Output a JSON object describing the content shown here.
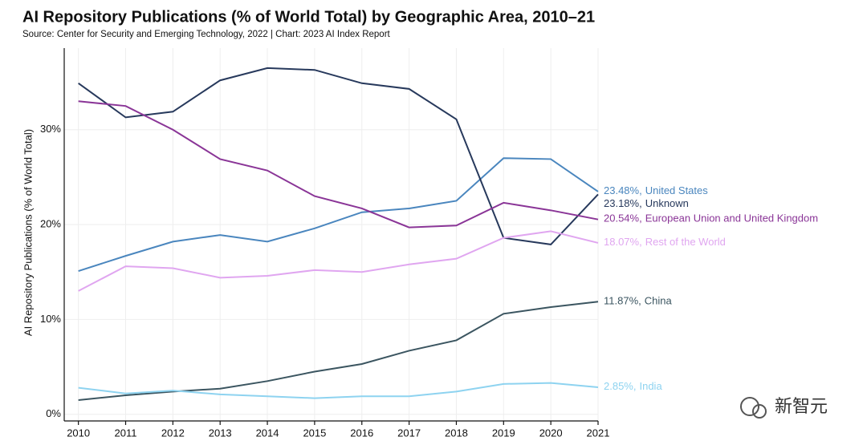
{
  "chart_data": {
    "type": "line",
    "title": "AI Repository Publications (% of World Total) by Geographic Area, 2010–21",
    "subtitle": "Source: Center for Security and Emerging Technology, 2022 | Chart: 2023 AI Index Report",
    "y_label": "AI Repository Publications (% of World Total)",
    "x": [
      2010,
      2011,
      2012,
      2013,
      2014,
      2015,
      2016,
      2017,
      2018,
      2019,
      2020,
      2021
    ],
    "xlim": [
      2009.7,
      2021
    ],
    "xticks": [
      2010,
      2011,
      2012,
      2013,
      2014,
      2015,
      2016,
      2017,
      2018,
      2019,
      2020,
      2021
    ],
    "ylim": [
      -0.7,
      38.6
    ],
    "yticks": [
      {
        "value": 0,
        "label": "0%"
      },
      {
        "value": 10,
        "label": "10%"
      },
      {
        "value": 20,
        "label": "20%"
      },
      {
        "value": 30,
        "label": "30%"
      }
    ],
    "grid": true,
    "series": [
      {
        "name": "United States",
        "color": "#4a86be",
        "values": [
          15.1,
          16.7,
          18.2,
          18.9,
          18.2,
          19.6,
          21.3,
          21.7,
          22.5,
          27.0,
          26.9,
          23.48
        ],
        "value_labels": [
          null,
          null,
          null,
          null,
          null,
          null,
          null,
          null,
          null,
          null,
          null,
          "23.48%,"
        ]
      },
      {
        "name": "Unknown",
        "color": "#27395c",
        "values": [
          34.9,
          31.3,
          31.9,
          35.2,
          36.5,
          36.3,
          34.9,
          34.3,
          31.1,
          18.6,
          17.9,
          23.18
        ],
        "value_labels": [
          null,
          null,
          null,
          null,
          null,
          null,
          null,
          null,
          null,
          null,
          null,
          "23.18%,"
        ]
      },
      {
        "name": "European Union and United Kingdom",
        "color": "#8a3597",
        "values": [
          33.0,
          32.5,
          30.0,
          26.9,
          25.7,
          23.0,
          21.7,
          19.7,
          19.9,
          22.3,
          21.5,
          20.54
        ],
        "value_labels": [
          null,
          null,
          null,
          null,
          null,
          null,
          null,
          null,
          null,
          null,
          null,
          "20.54%,"
        ]
      },
      {
        "name": "Rest of the World",
        "color": "#e0a6f0",
        "values": [
          13.0,
          15.6,
          15.4,
          14.4,
          14.6,
          15.2,
          15.0,
          15.8,
          16.4,
          18.6,
          19.3,
          18.07
        ],
        "value_labels": [
          null,
          null,
          null,
          null,
          null,
          null,
          null,
          null,
          null,
          null,
          null,
          "18.07%,"
        ]
      },
      {
        "name": "China",
        "color": "#3b5560",
        "values": [
          1.5,
          2.0,
          2.4,
          2.7,
          3.5,
          4.5,
          5.3,
          6.7,
          7.8,
          10.6,
          11.3,
          11.87
        ],
        "value_labels": [
          null,
          null,
          null,
          null,
          null,
          null,
          null,
          null,
          null,
          null,
          null,
          "11.87%,"
        ]
      },
      {
        "name": "India",
        "color": "#8ed3f0",
        "values": [
          2.8,
          2.2,
          2.5,
          2.1,
          1.9,
          1.7,
          1.9,
          1.9,
          2.4,
          3.2,
          3.3,
          2.85
        ],
        "value_labels": [
          null,
          null,
          null,
          null,
          null,
          null,
          null,
          null,
          null,
          null,
          null,
          "2.85%,"
        ]
      }
    ]
  },
  "watermark": "新智元"
}
